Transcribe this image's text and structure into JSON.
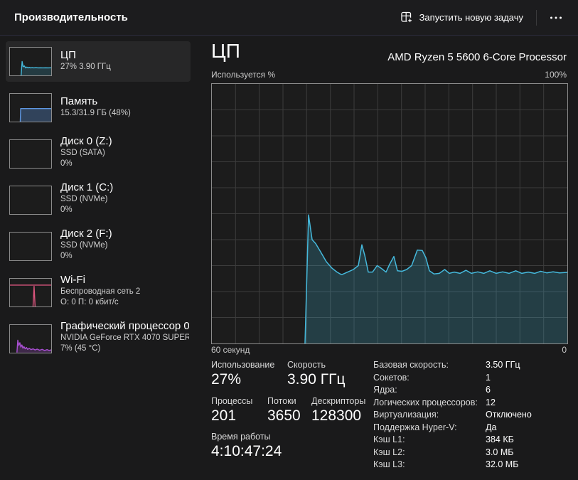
{
  "window": {
    "title": "Производительность"
  },
  "toolbar": {
    "run_new_task_label": "Запустить новую задачу"
  },
  "colors": {
    "background": "#1a1a1b",
    "selected_item": "#272728",
    "cpu_accent": "#45b9dc",
    "memory_accent": "#5e96e0",
    "wifi_accent": "#d9547c",
    "gpu_accent": "#a94fd2"
  },
  "sidebar": {
    "items": [
      {
        "id": "cpu",
        "title": "ЦП",
        "line2": "27%  3.90 ГГц",
        "selected": true
      },
      {
        "id": "memory",
        "title": "Память",
        "line2": "15.3/31.9 ГБ (48%)",
        "selected": false
      },
      {
        "id": "disk0",
        "title": "Диск 0 (Z:)",
        "line2": "SSD (SATA)",
        "line3": "0%",
        "selected": false
      },
      {
        "id": "disk1",
        "title": "Диск 1 (C:)",
        "line2": "SSD (NVMe)",
        "line3": "0%",
        "selected": false
      },
      {
        "id": "disk2",
        "title": "Диск 2 (F:)",
        "line2": "SSD (NVMe)",
        "line3": "0%",
        "selected": false
      },
      {
        "id": "wifi",
        "title": "Wi-Fi",
        "line2": "Беспроводная сеть 2",
        "line3": "О: 0 П: 0 кбит/с",
        "selected": false
      },
      {
        "id": "gpu",
        "title": "Графический процессор 0",
        "line2": "NVIDIA GeForce RTX 4070 SUPER",
        "line3": "7%  (45 °C)",
        "selected": false
      }
    ]
  },
  "main": {
    "title": "ЦП",
    "subtitle": "AMD Ryzen 5 5600 6-Core Processor",
    "axis": {
      "top_left": "Используется %",
      "top_right": "100%",
      "bottom_left": "60 секунд",
      "bottom_right": "0"
    },
    "stats": {
      "usage": {
        "label": "Использование",
        "value": "27%"
      },
      "speed": {
        "label": "Скорость",
        "value": "3.90 ГГц"
      },
      "processes": {
        "label": "Процессы",
        "value": "201"
      },
      "threads": {
        "label": "Потоки",
        "value": "3650"
      },
      "handles": {
        "label": "Дескрипторы",
        "value": "128300"
      },
      "uptime": {
        "label": "Время работы",
        "value": "4:10:47:24"
      }
    },
    "details": [
      {
        "label": "Базовая скорость:",
        "value": "3.50 ГГц"
      },
      {
        "label": "Сокетов:",
        "value": "1"
      },
      {
        "label": "Ядра:",
        "value": "6"
      },
      {
        "label": "Логических процессоров:",
        "value": "12"
      },
      {
        "label": "Виртуализация:",
        "value": "Отключено"
      },
      {
        "label": "Поддержка Hyper-V:",
        "value": "Да"
      },
      {
        "label": "Кэш L1:",
        "value": "384 КБ"
      },
      {
        "label": "Кэш L2:",
        "value": "3.0 МБ"
      },
      {
        "label": "Кэш L3:",
        "value": "32.0 МБ"
      }
    ]
  },
  "chart_data": {
    "type": "area",
    "title": "ЦП",
    "ylabel": "Используется %",
    "xlabel": "60 секунд → 0",
    "ylim": [
      0,
      100
    ],
    "x_window_seconds": 60,
    "grid": true,
    "grid_cols": 15,
    "grid_rows": 10,
    "legend": "none",
    "series": [
      {
        "name": "Использование ЦП",
        "color": "#45b9dc",
        "fill": "rgba(69,185,220,0.22)",
        "points": [
          [
            0.262,
            0
          ],
          [
            0.272,
            49.5
          ],
          [
            0.282,
            40
          ],
          [
            0.292,
            38.5
          ],
          [
            0.305,
            35.5
          ],
          [
            0.322,
            31.5
          ],
          [
            0.338,
            29
          ],
          [
            0.352,
            27.5
          ],
          [
            0.365,
            26.5
          ],
          [
            0.382,
            27.5
          ],
          [
            0.398,
            28.5
          ],
          [
            0.412,
            30
          ],
          [
            0.422,
            38
          ],
          [
            0.43,
            34
          ],
          [
            0.44,
            27.5
          ],
          [
            0.452,
            27.5
          ],
          [
            0.465,
            30
          ],
          [
            0.478,
            28.8
          ],
          [
            0.49,
            27.5
          ],
          [
            0.5,
            30.5
          ],
          [
            0.512,
            33.5
          ],
          [
            0.522,
            28
          ],
          [
            0.535,
            27.8
          ],
          [
            0.548,
            28.5
          ],
          [
            0.562,
            30
          ],
          [
            0.578,
            36
          ],
          [
            0.592,
            35.8
          ],
          [
            0.602,
            33
          ],
          [
            0.612,
            28
          ],
          [
            0.625,
            26.8
          ],
          [
            0.64,
            27
          ],
          [
            0.655,
            28.5
          ],
          [
            0.668,
            27
          ],
          [
            0.682,
            27.5
          ],
          [
            0.698,
            27
          ],
          [
            0.715,
            28.2
          ],
          [
            0.73,
            27
          ],
          [
            0.748,
            27.6
          ],
          [
            0.765,
            27
          ],
          [
            0.782,
            28
          ],
          [
            0.8,
            27
          ],
          [
            0.818,
            27.6
          ],
          [
            0.836,
            27
          ],
          [
            0.855,
            28
          ],
          [
            0.872,
            27
          ],
          [
            0.89,
            27.5
          ],
          [
            0.908,
            27
          ],
          [
            0.925,
            27.8
          ],
          [
            0.942,
            27.2
          ],
          [
            0.96,
            27.6
          ],
          [
            0.978,
            27.2
          ],
          [
            1.0,
            27.4
          ]
        ]
      }
    ]
  },
  "sparklines": {
    "cpu": {
      "series": [
        {
          "color": "#45b9dc",
          "fill": "rgba(69,185,220,0.20)",
          "points": [
            [
              0.27,
              0
            ],
            [
              0.295,
              50
            ],
            [
              0.32,
              31
            ],
            [
              0.35,
              34
            ],
            [
              0.38,
              27
            ],
            [
              0.41,
              30
            ],
            [
              0.44,
              27
            ],
            [
              0.47,
              29
            ],
            [
              0.5,
              27
            ],
            [
              0.54,
              28
            ],
            [
              0.58,
              27
            ],
            [
              0.63,
              28
            ],
            [
              0.68,
              27
            ],
            [
              0.74,
              27.5
            ],
            [
              0.8,
              27
            ],
            [
              0.87,
              27.5
            ],
            [
              0.93,
              27
            ],
            [
              1,
              27.3
            ]
          ]
        }
      ]
    },
    "memory": {
      "series": [
        {
          "color": "#5e96e0",
          "fill": "rgba(94,150,224,0.32)",
          "points": [
            [
              0.25,
              0
            ],
            [
              0.26,
              47
            ],
            [
              1,
              47
            ]
          ]
        }
      ]
    },
    "disk0": {
      "series": []
    },
    "disk1": {
      "series": []
    },
    "disk2": {
      "series": []
    },
    "wifi": {
      "series": [
        {
          "color": "#d9547c",
          "points": [
            [
              0,
              77
            ],
            [
              1,
              77
            ]
          ]
        },
        {
          "color": "#d9547c",
          "points": [
            [
              0.56,
              0
            ],
            [
              0.585,
              73
            ],
            [
              0.61,
              0
            ]
          ]
        }
      ]
    },
    "gpu": {
      "series": [
        {
          "color": "#a94fd2",
          "fill": "rgba(169,79,210,0.25)",
          "points": [
            [
              0.17,
              2
            ],
            [
              0.19,
              45
            ],
            [
              0.215,
              26
            ],
            [
              0.24,
              36
            ],
            [
              0.265,
              20
            ],
            [
              0.29,
              28
            ],
            [
              0.315,
              16
            ],
            [
              0.34,
              22
            ],
            [
              0.37,
              14
            ],
            [
              0.4,
              19
            ],
            [
              0.43,
              12
            ],
            [
              0.47,
              16
            ],
            [
              0.51,
              11
            ],
            [
              0.56,
              14
            ],
            [
              0.61,
              10
            ],
            [
              0.66,
              13
            ],
            [
              0.72,
              9
            ],
            [
              0.78,
              12
            ],
            [
              0.84,
              8
            ],
            [
              0.9,
              11
            ],
            [
              0.95,
              8
            ],
            [
              1,
              10
            ]
          ]
        }
      ]
    }
  }
}
